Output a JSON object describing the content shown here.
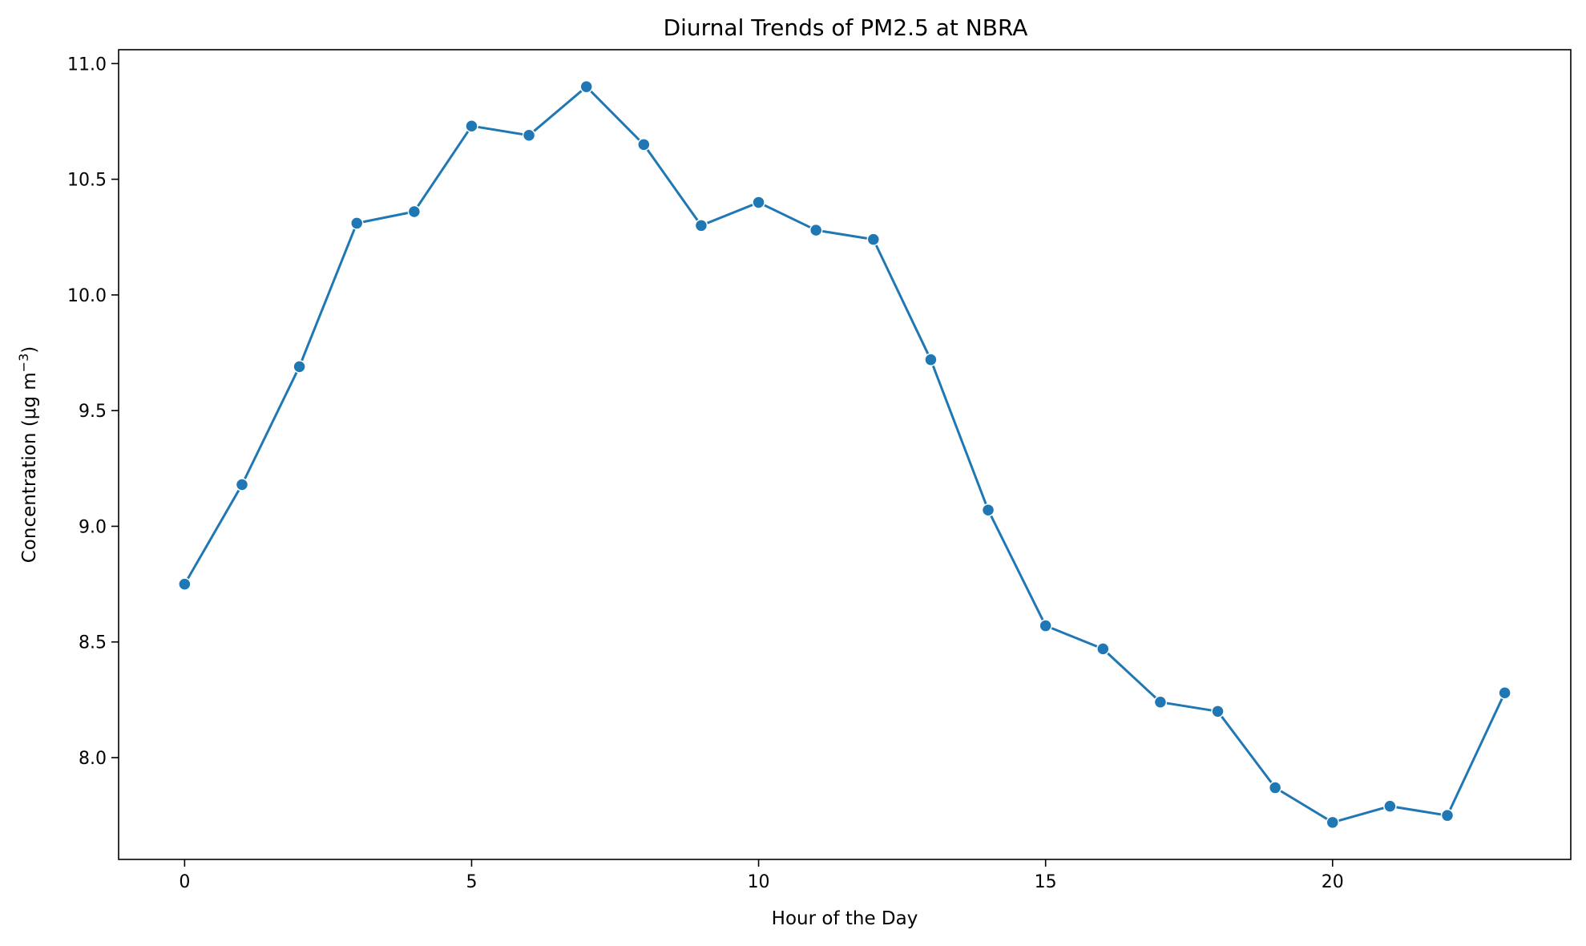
{
  "chart_data": {
    "type": "line",
    "title": "Diurnal Trends of PM2.5 at NBRA",
    "xlabel": "Hour of the Day",
    "ylabel_main": "Concentration (μg m",
    "ylabel_sup": "−3",
    "ylabel_end": ")",
    "xlim": [
      -1.15,
      24.15
    ],
    "ylim": [
      7.56,
      11.06
    ],
    "xticks": [
      0,
      5,
      10,
      15,
      20
    ],
    "xtick_labels": [
      "0",
      "5",
      "10",
      "15",
      "20"
    ],
    "yticks": [
      8.0,
      8.5,
      9.0,
      9.5,
      10.0,
      10.5,
      11.0
    ],
    "ytick_labels": [
      "8.0",
      "8.5",
      "9.0",
      "9.5",
      "10.0",
      "10.5",
      "11.0"
    ],
    "grid": false,
    "series": [
      {
        "color": "#1f77b4",
        "marker": "circle",
        "x": [
          0,
          1,
          2,
          3,
          4,
          5,
          6,
          7,
          8,
          9,
          10,
          11,
          12,
          13,
          14,
          15,
          16,
          17,
          18,
          19,
          20,
          21,
          22,
          23
        ],
        "y": [
          8.75,
          9.18,
          9.69,
          10.31,
          10.36,
          10.73,
          10.69,
          10.9,
          10.65,
          10.3,
          10.4,
          10.28,
          10.24,
          9.72,
          9.07,
          8.57,
          8.47,
          8.24,
          8.2,
          7.87,
          7.72,
          7.79,
          7.75,
          8.28
        ]
      }
    ]
  }
}
